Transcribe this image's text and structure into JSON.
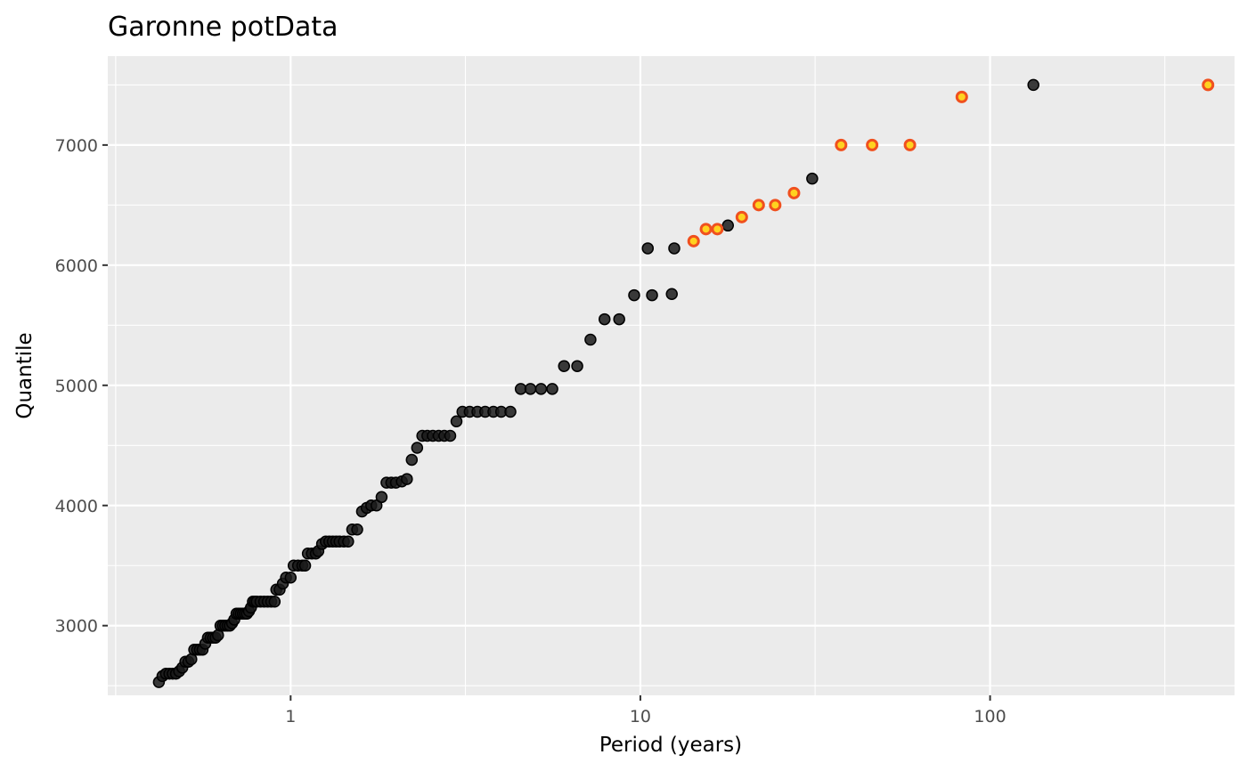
{
  "chart_data": {
    "type": "scatter",
    "title": "Garonne potData",
    "xlabel": "Period (years)",
    "ylabel": "Quantile",
    "x_scale": "log",
    "xlim": [
      0.3,
      500
    ],
    "ylim": [
      2420,
      7740
    ],
    "x_ticks": [
      1,
      10,
      100
    ],
    "x_tick_labels": [
      "1",
      "10",
      "100"
    ],
    "y_ticks": [
      3000,
      4000,
      5000,
      6000,
      7000
    ],
    "y_tick_labels": [
      "3000",
      "4000",
      "5000",
      "6000",
      "7000"
    ],
    "grid": true,
    "colors": {
      "panel": "#ebebeb",
      "grid": "#ffffff",
      "sample_point": "#1a1a1a",
      "highlight_fill": "#ffd21f",
      "highlight_stroke": "#f0501e"
    },
    "series": [
      {
        "marker": "filled-circle",
        "points": [
          [
            0.42,
            2530
          ],
          [
            0.43,
            2580
          ],
          [
            0.44,
            2600
          ],
          [
            0.45,
            2600
          ],
          [
            0.46,
            2600
          ],
          [
            0.47,
            2600
          ],
          [
            0.48,
            2620
          ],
          [
            0.49,
            2650
          ],
          [
            0.5,
            2700
          ],
          [
            0.51,
            2700
          ],
          [
            0.52,
            2720
          ],
          [
            0.53,
            2800
          ],
          [
            0.54,
            2800
          ],
          [
            0.55,
            2800
          ],
          [
            0.56,
            2800
          ],
          [
            0.57,
            2850
          ],
          [
            0.58,
            2900
          ],
          [
            0.59,
            2900
          ],
          [
            0.6,
            2900
          ],
          [
            0.61,
            2900
          ],
          [
            0.62,
            2920
          ],
          [
            0.63,
            3000
          ],
          [
            0.64,
            3000
          ],
          [
            0.65,
            3000
          ],
          [
            0.66,
            3000
          ],
          [
            0.67,
            3000
          ],
          [
            0.68,
            3020
          ],
          [
            0.69,
            3050
          ],
          [
            0.7,
            3100
          ],
          [
            0.71,
            3100
          ],
          [
            0.72,
            3100
          ],
          [
            0.73,
            3100
          ],
          [
            0.74,
            3100
          ],
          [
            0.75,
            3100
          ],
          [
            0.76,
            3120
          ],
          [
            0.77,
            3150
          ],
          [
            0.78,
            3200
          ],
          [
            0.79,
            3200
          ],
          [
            0.8,
            3200
          ],
          [
            0.82,
            3200
          ],
          [
            0.84,
            3200
          ],
          [
            0.86,
            3200
          ],
          [
            0.88,
            3200
          ],
          [
            0.9,
            3200
          ],
          [
            0.91,
            3300
          ],
          [
            0.93,
            3300
          ],
          [
            0.95,
            3350
          ],
          [
            0.97,
            3400
          ],
          [
            1.0,
            3400
          ],
          [
            1.02,
            3500
          ],
          [
            1.05,
            3500
          ],
          [
            1.08,
            3500
          ],
          [
            1.1,
            3500
          ],
          [
            1.12,
            3600
          ],
          [
            1.15,
            3600
          ],
          [
            1.18,
            3600
          ],
          [
            1.2,
            3620
          ],
          [
            1.23,
            3680
          ],
          [
            1.26,
            3700
          ],
          [
            1.29,
            3700
          ],
          [
            1.32,
            3700
          ],
          [
            1.35,
            3700
          ],
          [
            1.38,
            3700
          ],
          [
            1.42,
            3700
          ],
          [
            1.46,
            3700
          ],
          [
            1.5,
            3800
          ],
          [
            1.55,
            3800
          ],
          [
            1.6,
            3950
          ],
          [
            1.65,
            3980
          ],
          [
            1.7,
            4000
          ],
          [
            1.76,
            4000
          ],
          [
            1.82,
            4070
          ],
          [
            1.88,
            4190
          ],
          [
            1.94,
            4190
          ],
          [
            2.0,
            4190
          ],
          [
            2.08,
            4200
          ],
          [
            2.15,
            4220
          ],
          [
            2.22,
            4380
          ],
          [
            2.3,
            4480
          ],
          [
            2.38,
            4580
          ],
          [
            2.46,
            4580
          ],
          [
            2.55,
            4580
          ],
          [
            2.65,
            4580
          ],
          [
            2.75,
            4580
          ],
          [
            2.86,
            4580
          ],
          [
            2.98,
            4700
          ],
          [
            3.1,
            4780
          ],
          [
            3.25,
            4780
          ],
          [
            3.42,
            4780
          ],
          [
            3.6,
            4780
          ],
          [
            3.8,
            4780
          ],
          [
            4.0,
            4780
          ],
          [
            4.25,
            4780
          ],
          [
            4.55,
            4970
          ],
          [
            4.85,
            4970
          ],
          [
            5.2,
            4970
          ],
          [
            5.6,
            4970
          ],
          [
            6.05,
            5160
          ],
          [
            6.6,
            5160
          ],
          [
            7.2,
            5380
          ],
          [
            7.9,
            5550
          ],
          [
            8.7,
            5550
          ],
          [
            9.6,
            5750
          ],
          [
            10.8,
            5750
          ],
          [
            12.3,
            5760
          ]
        ]
      },
      {
        "marker": "filled-circle",
        "points": [
          [
            10.5,
            6140
          ],
          [
            12.5,
            6140
          ],
          [
            17.8,
            6330
          ],
          [
            31.0,
            6720
          ],
          [
            133,
            7500
          ]
        ]
      },
      {
        "marker": "ring",
        "points": [
          [
            14.2,
            6200
          ],
          [
            15.4,
            6300
          ],
          [
            16.6,
            6300
          ],
          [
            19.5,
            6400
          ],
          [
            21.8,
            6500
          ],
          [
            24.3,
            6500
          ],
          [
            27.5,
            6600
          ],
          [
            37.5,
            7000
          ],
          [
            46.0,
            7000
          ],
          [
            59.0,
            7000
          ],
          [
            83.0,
            7400
          ],
          [
            420,
            7500
          ]
        ]
      }
    ]
  }
}
